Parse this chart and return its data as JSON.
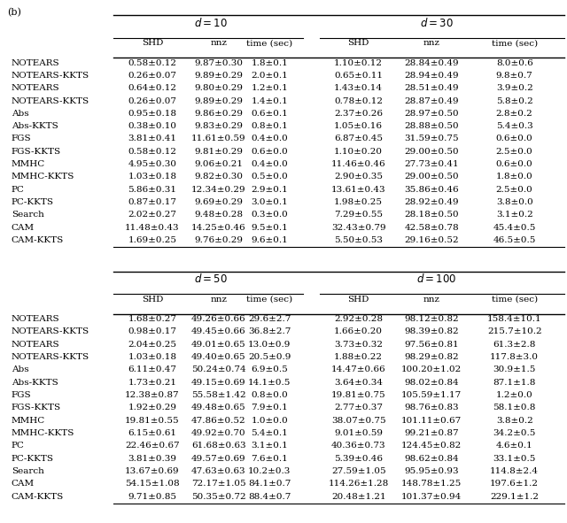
{
  "title": "(b)",
  "sections": [
    {
      "header": "d = 10",
      "header2": "d = 30",
      "rows": [
        [
          "NOTEARS",
          "0.58±0.12",
          "9.87±0.30",
          "1.8±0.1",
          "1.10±0.12",
          "28.84±0.49",
          "8.0±0.6"
        ],
        [
          "NOTEARS-KKTS",
          "0.26±0.07",
          "9.89±0.29",
          "2.0±0.1",
          "0.65±0.11",
          "28.94±0.49",
          "9.8±0.7"
        ],
        [
          "NOTEARS",
          "0.64±0.12",
          "9.80±0.29",
          "1.2±0.1",
          "1.43±0.14",
          "28.51±0.49",
          "3.9±0.2"
        ],
        [
          "NOTEARS-KKTS",
          "0.26±0.07",
          "9.89±0.29",
          "1.4±0.1",
          "0.78±0.12",
          "28.87±0.49",
          "5.8±0.2"
        ],
        [
          "Abs",
          "0.95±0.18",
          "9.86±0.29",
          "0.6±0.1",
          "2.37±0.26",
          "28.97±0.50",
          "2.8±0.2"
        ],
        [
          "Abs-KKTS",
          "0.38±0.10",
          "9.83±0.29",
          "0.8±0.1",
          "1.05±0.16",
          "28.88±0.50",
          "5.4±0.3"
        ],
        [
          "FGS",
          "3.81±0.41",
          "11.61±0.59",
          "0.4±0.0",
          "6.87±0.45",
          "31.59±0.75",
          "0.6±0.0"
        ],
        [
          "FGS-KKTS",
          "0.58±0.12",
          "9.81±0.29",
          "0.6±0.0",
          "1.10±0.20",
          "29.00±0.50",
          "2.5±0.0"
        ],
        [
          "MMHC",
          "4.95±0.30",
          "9.06±0.21",
          "0.4±0.0",
          "11.46±0.46",
          "27.73±0.41",
          "0.6±0.0"
        ],
        [
          "MMHC-KKTS",
          "1.03±0.18",
          "9.82±0.30",
          "0.5±0.0",
          "2.90±0.35",
          "29.00±0.50",
          "1.8±0.0"
        ],
        [
          "PC",
          "5.86±0.31",
          "12.34±0.29",
          "2.9±0.1",
          "13.61±0.43",
          "35.86±0.46",
          "2.5±0.0"
        ],
        [
          "PC-KKTS",
          "0.87±0.17",
          "9.69±0.29",
          "3.0±0.1",
          "1.98±0.25",
          "28.92±0.49",
          "3.8±0.0"
        ],
        [
          "Search",
          "2.02±0.27",
          "9.48±0.28",
          "0.3±0.0",
          "7.29±0.55",
          "28.18±0.50",
          "3.1±0.2"
        ],
        [
          "CAM",
          "11.48±0.43",
          "14.25±0.46",
          "9.5±0.1",
          "32.43±0.79",
          "42.58±0.78",
          "45.4±0.5"
        ],
        [
          "CAM-KKTS",
          "1.69±0.25",
          "9.76±0.29",
          "9.6±0.1",
          "5.50±0.53",
          "29.16±0.52",
          "46.5±0.5"
        ]
      ]
    },
    {
      "header": "d = 50",
      "header2": "d = 100",
      "rows": [
        [
          "NOTEARS",
          "1.68±0.27",
          "49.26±0.66",
          "29.6±2.7",
          "2.92±0.28",
          "98.12±0.82",
          "158.4±10.1"
        ],
        [
          "NOTEARS-KKTS",
          "0.98±0.17",
          "49.45±0.66",
          "36.8±2.7",
          "1.66±0.20",
          "98.39±0.82",
          "215.7±10.2"
        ],
        [
          "NOTEARS",
          "2.04±0.25",
          "49.01±0.65",
          "13.0±0.9",
          "3.73±0.32",
          "97.56±0.81",
          "61.3±2.8"
        ],
        [
          "NOTEARS-KKTS",
          "1.03±0.18",
          "49.40±0.65",
          "20.5±0.9",
          "1.88±0.22",
          "98.29±0.82",
          "117.8±3.0"
        ],
        [
          "Abs",
          "6.11±0.47",
          "50.24±0.74",
          "6.9±0.5",
          "14.47±0.66",
          "100.20±1.02",
          "30.9±1.5"
        ],
        [
          "Abs-KKTS",
          "1.73±0.21",
          "49.15±0.69",
          "14.1±0.5",
          "3.64±0.34",
          "98.02±0.84",
          "87.1±1.8"
        ],
        [
          "FGS",
          "12.38±0.87",
          "55.58±1.42",
          "0.8±0.0",
          "19.81±0.75",
          "105.59±1.17",
          "1.2±0.0"
        ],
        [
          "FGS-KKTS",
          "1.92±0.29",
          "49.48±0.65",
          "7.9±0.1",
          "2.77±0.37",
          "98.76±0.83",
          "58.1±0.8"
        ],
        [
          "MMHC",
          "19.81±0.55",
          "47.86±0.52",
          "1.0±0.0",
          "38.07±0.75",
          "101.11±0.67",
          "3.8±0.2"
        ],
        [
          "MMHC-KKTS",
          "6.15±0.61",
          "49.92±0.70",
          "5.4±0.1",
          "9.01±0.59",
          "99.21±0.87",
          "34.2±0.5"
        ],
        [
          "PC",
          "22.46±0.67",
          "61.68±0.63",
          "3.1±0.1",
          "40.36±0.73",
          "124.45±0.82",
          "4.6±0.1"
        ],
        [
          "PC-KKTS",
          "3.81±0.39",
          "49.57±0.69",
          "7.6±0.1",
          "5.39±0.46",
          "98.62±0.84",
          "33.1±0.5"
        ],
        [
          "Search",
          "13.67±0.69",
          "47.63±0.63",
          "10.2±0.3",
          "27.59±1.05",
          "95.95±0.93",
          "114.8±2.4"
        ],
        [
          "CAM",
          "54.15±1.08",
          "72.17±1.05",
          "84.1±0.7",
          "114.26±1.28",
          "148.78±1.25",
          "197.6±1.2"
        ],
        [
          "CAM-KKTS",
          "9.71±0.85",
          "50.35±0.72",
          "88.4±0.7",
          "20.48±1.21",
          "101.37±0.94",
          "229.1±1.2"
        ]
      ]
    }
  ],
  "col_headers": [
    "SHD",
    "nnz",
    "time (sec)",
    "SHD",
    "nnz",
    "time (sec)"
  ],
  "fontsize": 7.5,
  "header_fontsize": 8.5
}
